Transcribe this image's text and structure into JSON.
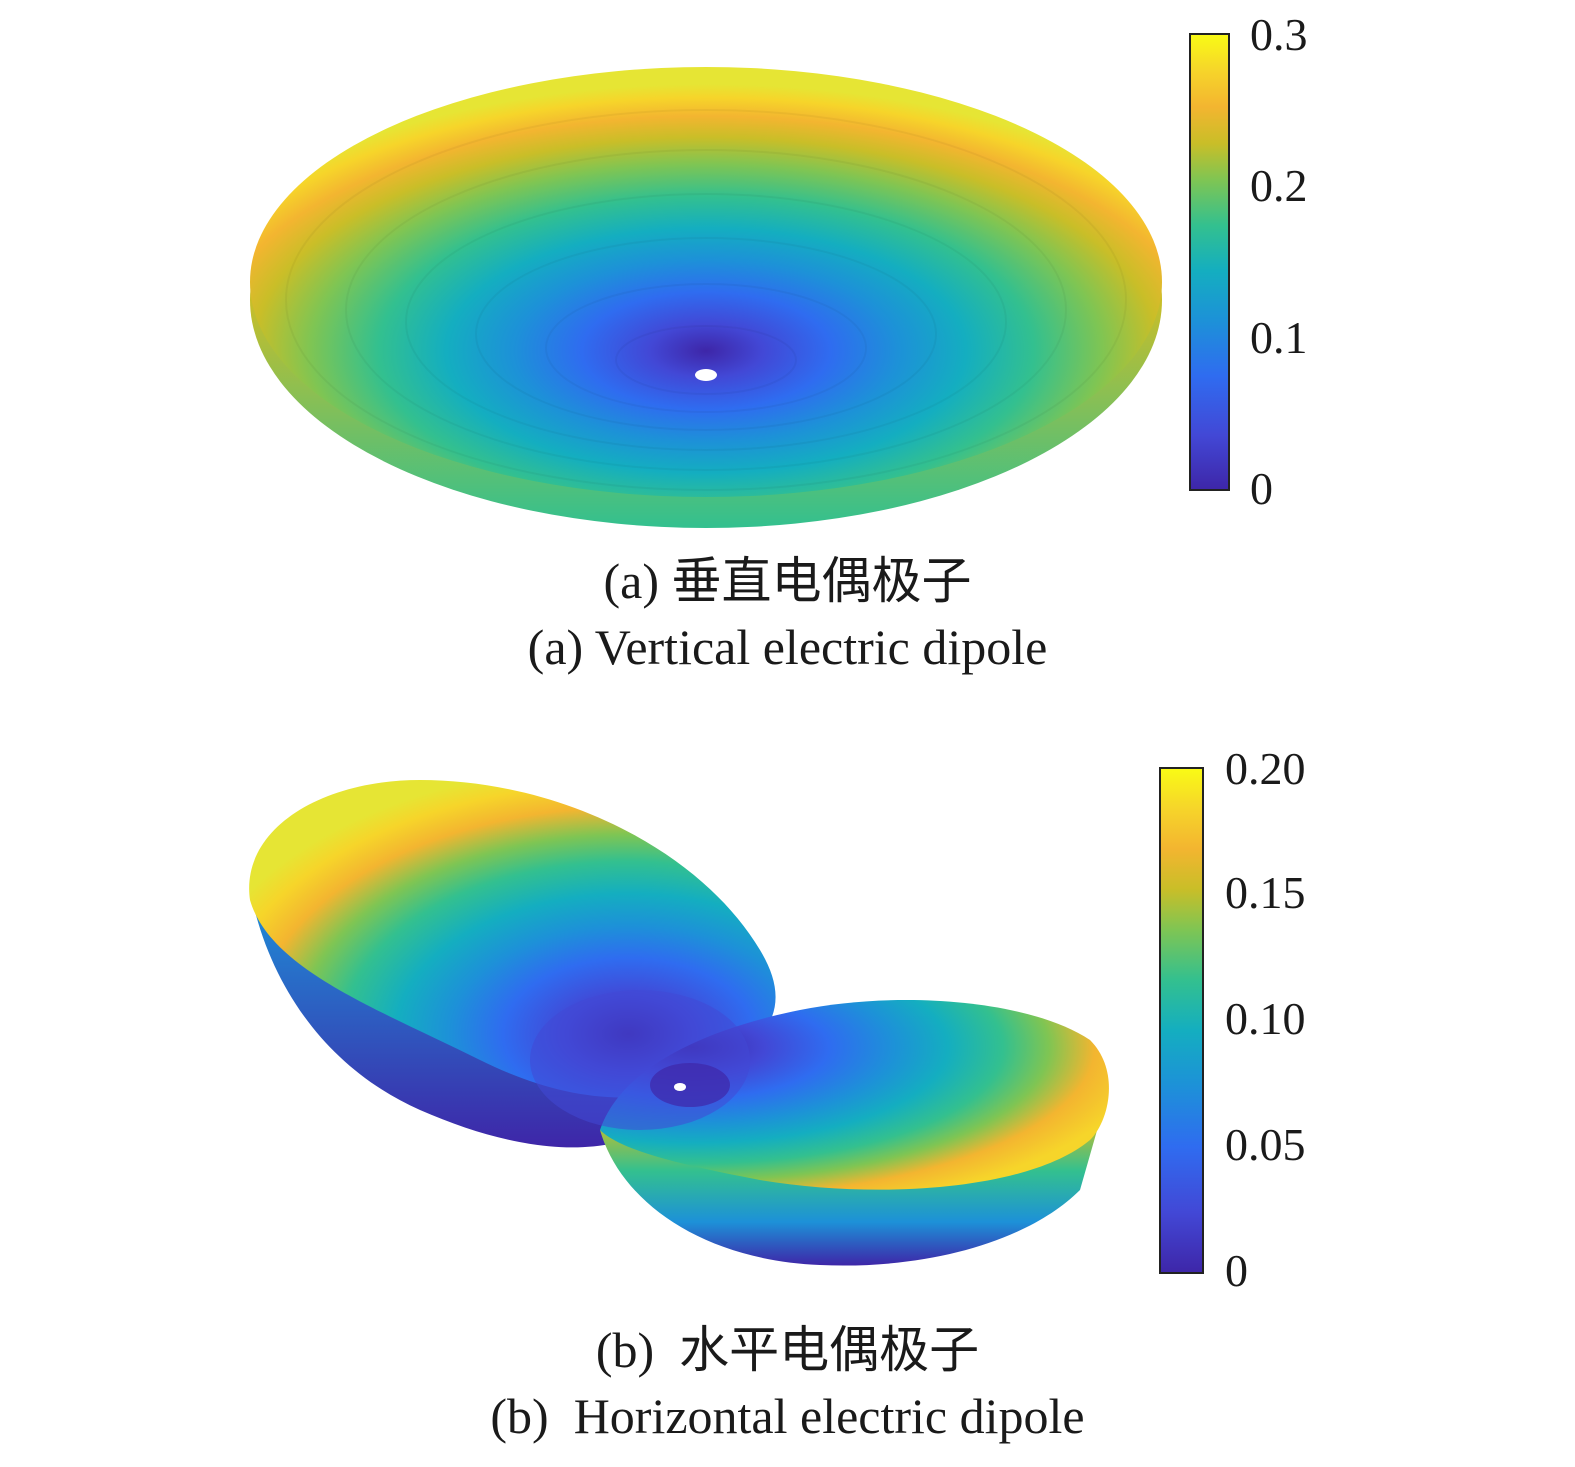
{
  "figure": {
    "panels": [
      {
        "id": "a",
        "caption_cn": "(a) 垂直电偶极子",
        "caption_en": "(a) Vertical electric dipole",
        "colorbar": {
          "ticks": [
            "0",
            "0.1",
            "0.2",
            "0.3"
          ],
          "range": [
            0,
            0.3
          ]
        }
      },
      {
        "id": "b",
        "caption_cn": "(b)  水平电偶极子",
        "caption_en": "(b)  Horizontal electric dipole",
        "colorbar": {
          "ticks": [
            "0",
            "0.05",
            "0.10",
            "0.15",
            "0.20"
          ],
          "range": [
            0,
            0.2
          ]
        }
      }
    ],
    "colormap": [
      "#3e26a8",
      "#4248d6",
      "#2f6cf0",
      "#1d91d8",
      "#14aec0",
      "#33c08f",
      "#7fc553",
      "#c9be28",
      "#f3b530",
      "#f6d52a",
      "#f9fb15"
    ]
  }
}
